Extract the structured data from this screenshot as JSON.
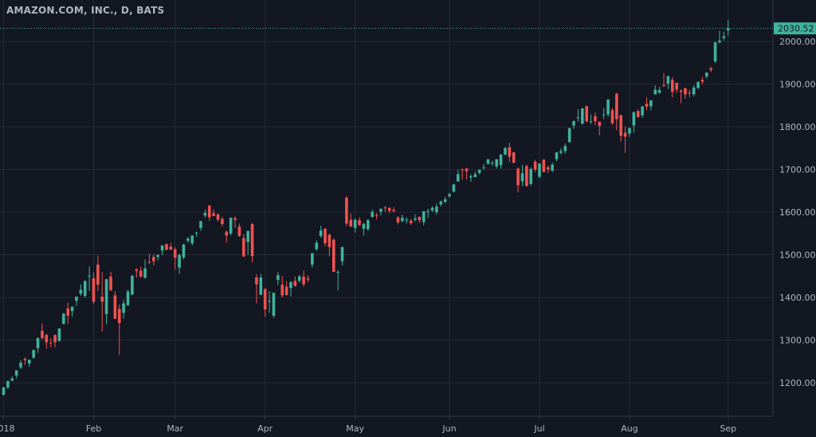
{
  "header": {
    "symbol_title": "AMAZON.COM, INC., D, BATS"
  },
  "colors": {
    "background": "#131722",
    "grid": "#262a35",
    "up": "#3fb39b",
    "down": "#ef5350",
    "axis_text": "#b2b5be",
    "last_price_bg": "#3fb39b"
  },
  "chart_data": {
    "type": "candlestick",
    "title": "AMAZON.COM, INC., D, BATS",
    "ylim": [
      1130,
      2100
    ],
    "y_ticks": [
      "2000.00",
      "1900.00",
      "1800.00",
      "1700.00",
      "1600.00",
      "1500.00",
      "1400.00",
      "1300.00",
      "1200.00"
    ],
    "y_tick_values": [
      2000,
      1900,
      1800,
      1700,
      1600,
      1500,
      1400,
      1300,
      1200
    ],
    "x_ticks": [
      {
        "label": "2018",
        "date": "2018-01-02"
      },
      {
        "label": "Feb",
        "date": "2018-02-01"
      },
      {
        "label": "Mar",
        "date": "2018-03-01"
      },
      {
        "label": "Apr",
        "date": "2018-04-02"
      },
      {
        "label": "May",
        "date": "2018-05-01"
      },
      {
        "label": "Jun",
        "date": "2018-06-01"
      },
      {
        "label": "Jul",
        "date": "2018-07-02"
      },
      {
        "label": "Aug",
        "date": "2018-08-01"
      },
      {
        "label": "Sep",
        "date": "2018-09-04"
      }
    ],
    "grid": true,
    "last_price": 2030.52,
    "last_price_label": "2030.52",
    "ohlc_columns": [
      "date",
      "open",
      "high",
      "low",
      "close"
    ],
    "ohlc": [
      [
        "2018-01-02",
        1172,
        1190,
        1170,
        1189
      ],
      [
        "2018-01-03",
        1189,
        1205,
        1185,
        1204
      ],
      [
        "2018-01-04",
        1205,
        1215,
        1204,
        1210
      ],
      [
        "2018-01-05",
        1217,
        1229,
        1210,
        1229
      ],
      [
        "2018-01-08",
        1236,
        1253,
        1232,
        1247
      ],
      [
        "2018-01-09",
        1256,
        1260,
        1241,
        1253
      ],
      [
        "2018-01-10",
        1245,
        1254,
        1237,
        1254
      ],
      [
        "2018-01-11",
        1259,
        1277,
        1256,
        1277
      ],
      [
        "2018-01-12",
        1281,
        1306,
        1270,
        1305
      ],
      [
        "2018-01-16",
        1322,
        1339,
        1301,
        1305
      ],
      [
        "2018-01-17",
        1312,
        1315,
        1280,
        1295
      ],
      [
        "2018-01-18",
        1294,
        1305,
        1283,
        1293
      ],
      [
        "2018-01-19",
        1312,
        1313,
        1283,
        1295
      ],
      [
        "2018-01-22",
        1298,
        1328,
        1297,
        1327
      ],
      [
        "2018-01-23",
        1338,
        1364,
        1337,
        1362
      ],
      [
        "2018-01-24",
        1374,
        1388,
        1338,
        1357
      ],
      [
        "2018-01-25",
        1368,
        1379,
        1355,
        1378
      ],
      [
        "2018-01-26",
        1392,
        1402,
        1380,
        1402
      ],
      [
        "2018-01-29",
        1409,
        1431,
        1404,
        1418
      ],
      [
        "2018-01-30",
        1404,
        1441,
        1399,
        1438
      ],
      [
        "2018-01-31",
        1451,
        1473,
        1415,
        1451
      ],
      [
        "2018-02-01",
        1445,
        1459,
        1385,
        1390
      ],
      [
        "2018-02-02",
        1477,
        1498,
        1414,
        1430
      ],
      [
        "2018-02-05",
        1402,
        1459,
        1320,
        1390
      ],
      [
        "2018-02-06",
        1361,
        1443,
        1337,
        1443
      ],
      [
        "2018-02-07",
        1449,
        1460,
        1415,
        1417
      ],
      [
        "2018-02-08",
        1405,
        1415,
        1350,
        1350
      ],
      [
        "2018-02-09",
        1373,
        1384,
        1265,
        1340
      ],
      [
        "2018-02-12",
        1364,
        1395,
        1350,
        1386
      ],
      [
        "2018-02-13",
        1382,
        1418,
        1380,
        1414
      ],
      [
        "2018-02-14",
        1407,
        1452,
        1405,
        1451
      ],
      [
        "2018-02-15",
        1466,
        1468,
        1446,
        1462
      ],
      [
        "2018-02-16",
        1463,
        1472,
        1446,
        1449
      ],
      [
        "2018-02-20",
        1446,
        1489,
        1444,
        1468
      ],
      [
        "2018-02-21",
        1484,
        1503,
        1478,
        1483
      ],
      [
        "2018-02-22",
        1495,
        1502,
        1475,
        1485
      ],
      [
        "2018-02-23",
        1495,
        1500,
        1487,
        1500
      ],
      [
        "2018-02-26",
        1510,
        1522,
        1499,
        1522
      ],
      [
        "2018-02-27",
        1525,
        1527,
        1510,
        1512
      ],
      [
        "2018-02-28",
        1519,
        1528,
        1512,
        1512
      ],
      [
        "2018-03-01",
        1513,
        1518,
        1465,
        1493
      ],
      [
        "2018-03-02",
        1470,
        1502,
        1455,
        1500
      ],
      [
        "2018-03-05",
        1494,
        1526,
        1489,
        1524
      ],
      [
        "2018-03-06",
        1533,
        1542,
        1528,
        1538
      ],
      [
        "2018-03-07",
        1527,
        1546,
        1522,
        1545
      ],
      [
        "2018-03-08",
        1550,
        1554,
        1542,
        1552
      ],
      [
        "2018-03-09",
        1563,
        1579,
        1556,
        1579
      ],
      [
        "2018-03-12",
        1592,
        1606,
        1586,
        1598
      ],
      [
        "2018-03-13",
        1615,
        1617,
        1579,
        1588
      ],
      [
        "2018-03-14",
        1597,
        1606,
        1590,
        1591
      ],
      [
        "2018-03-15",
        1595,
        1596,
        1578,
        1582
      ],
      [
        "2018-03-16",
        1584,
        1589,
        1566,
        1572
      ],
      [
        "2018-03-19",
        1554,
        1557,
        1528,
        1545
      ],
      [
        "2018-03-20",
        1550,
        1587,
        1545,
        1587
      ],
      [
        "2018-03-21",
        1586,
        1590,
        1563,
        1582
      ],
      [
        "2018-03-22",
        1566,
        1573,
        1542,
        1544
      ],
      [
        "2018-03-23",
        1539,
        1549,
        1495,
        1496
      ],
      [
        "2018-03-26",
        1530,
        1556,
        1500,
        1556
      ],
      [
        "2018-03-27",
        1572,
        1575,
        1482,
        1497
      ],
      [
        "2018-03-28",
        1447,
        1455,
        1386,
        1431
      ],
      [
        "2018-03-29",
        1406,
        1455,
        1406,
        1447
      ],
      [
        "2018-04-02",
        1420,
        1421,
        1355,
        1372
      ],
      [
        "2018-04-03",
        1390,
        1415,
        1364,
        1392
      ],
      [
        "2018-04-04",
        1357,
        1410,
        1352,
        1411
      ],
      [
        "2018-04-05",
        1441,
        1460,
        1429,
        1452
      ],
      [
        "2018-04-06",
        1430,
        1450,
        1400,
        1405
      ],
      [
        "2018-04-09",
        1425,
        1438,
        1404,
        1406
      ],
      [
        "2018-04-10",
        1422,
        1438,
        1402,
        1436
      ],
      [
        "2018-04-11",
        1439,
        1449,
        1425,
        1427
      ],
      [
        "2018-04-12",
        1439,
        1453,
        1435,
        1449
      ],
      [
        "2018-04-13",
        1449,
        1463,
        1425,
        1431
      ],
      [
        "2018-04-16",
        1445,
        1452,
        1435,
        1442
      ],
      [
        "2018-04-17",
        1477,
        1504,
        1470,
        1504
      ],
      [
        "2018-04-18",
        1513,
        1534,
        1509,
        1528
      ],
      [
        "2018-04-19",
        1544,
        1568,
        1540,
        1557
      ],
      [
        "2018-04-20",
        1561,
        1563,
        1520,
        1527
      ],
      [
        "2018-04-23",
        1547,
        1549,
        1496,
        1518
      ],
      [
        "2018-04-24",
        1535,
        1539,
        1462,
        1460
      ],
      [
        "2018-04-25",
        1458,
        1464,
        1417,
        1460
      ],
      [
        "2018-04-26",
        1485,
        1519,
        1475,
        1518
      ],
      [
        "2018-04-27",
        1634,
        1638,
        1567,
        1573
      ],
      [
        "2018-04-30",
        1582,
        1597,
        1566,
        1566
      ],
      [
        "2018-05-01",
        1563,
        1585,
        1552,
        1582
      ],
      [
        "2018-05-02",
        1581,
        1588,
        1567,
        1570
      ],
      [
        "2018-05-03",
        1561,
        1576,
        1545,
        1572
      ],
      [
        "2018-05-04",
        1560,
        1584,
        1556,
        1581
      ],
      [
        "2018-05-07",
        1589,
        1606,
        1587,
        1600
      ],
      [
        "2018-05-08",
        1593,
        1598,
        1583,
        1592
      ],
      [
        "2018-05-09",
        1601,
        1608,
        1592,
        1608
      ],
      [
        "2018-05-10",
        1611,
        1615,
        1600,
        1609
      ],
      [
        "2018-05-11",
        1610,
        1611,
        1598,
        1603
      ],
      [
        "2018-05-14",
        1605,
        1612,
        1600,
        1602
      ],
      [
        "2018-05-15",
        1588,
        1590,
        1571,
        1576
      ],
      [
        "2018-05-16",
        1579,
        1594,
        1576,
        1587
      ],
      [
        "2018-05-17",
        1581,
        1588,
        1573,
        1582
      ],
      [
        "2018-05-18",
        1580,
        1584,
        1570,
        1574
      ],
      [
        "2018-05-21",
        1582,
        1595,
        1578,
        1585
      ],
      [
        "2018-05-22",
        1589,
        1590,
        1575,
        1581
      ],
      [
        "2018-05-23",
        1577,
        1602,
        1569,
        1602
      ],
      [
        "2018-05-24",
        1601,
        1608,
        1586,
        1603
      ],
      [
        "2018-05-25",
        1604,
        1614,
        1601,
        1610
      ],
      [
        "2018-05-29",
        1600,
        1620,
        1594,
        1613
      ],
      [
        "2018-05-30",
        1618,
        1627,
        1614,
        1625
      ],
      [
        "2018-05-31",
        1624,
        1636,
        1621,
        1630
      ],
      [
        "2018-06-01",
        1637,
        1646,
        1634,
        1642
      ],
      [
        "2018-06-04",
        1648,
        1666,
        1646,
        1665
      ],
      [
        "2018-06-05",
        1672,
        1699,
        1671,
        1689
      ],
      [
        "2018-06-06",
        1700,
        1702,
        1676,
        1699
      ],
      [
        "2018-06-07",
        1702,
        1704,
        1676,
        1696
      ],
      [
        "2018-06-08",
        1681,
        1689,
        1671,
        1684
      ],
      [
        "2018-06-11",
        1682,
        1695,
        1682,
        1689
      ],
      [
        "2018-06-12",
        1692,
        1700,
        1688,
        1699
      ],
      [
        "2018-06-13",
        1703,
        1713,
        1700,
        1705
      ],
      [
        "2018-06-14",
        1713,
        1724,
        1712,
        1724
      ],
      [
        "2018-06-15",
        1714,
        1720,
        1708,
        1716
      ],
      [
        "2018-06-18",
        1707,
        1724,
        1702,
        1724
      ],
      [
        "2018-06-19",
        1710,
        1736,
        1702,
        1735
      ],
      [
        "2018-06-20",
        1735,
        1753,
        1733,
        1750
      ],
      [
        "2018-06-21",
        1752,
        1763,
        1717,
        1730
      ],
      [
        "2018-06-22",
        1740,
        1741,
        1714,
        1716
      ],
      [
        "2018-06-25",
        1702,
        1705,
        1646,
        1663
      ],
      [
        "2018-06-26",
        1672,
        1711,
        1661,
        1691
      ],
      [
        "2018-06-27",
        1708,
        1711,
        1660,
        1661
      ],
      [
        "2018-06-28",
        1666,
        1705,
        1662,
        1701
      ],
      [
        "2018-06-29",
        1718,
        1723,
        1694,
        1700
      ],
      [
        "2018-07-02",
        1683,
        1714,
        1679,
        1714
      ],
      [
        "2018-07-03",
        1723,
        1724,
        1693,
        1694
      ],
      [
        "2018-07-05",
        1705,
        1710,
        1691,
        1700
      ],
      [
        "2018-07-06",
        1697,
        1716,
        1694,
        1711
      ],
      [
        "2018-07-09",
        1724,
        1740,
        1719,
        1740
      ],
      [
        "2018-07-10",
        1739,
        1750,
        1735,
        1743
      ],
      [
        "2018-07-11",
        1743,
        1761,
        1737,
        1755
      ],
      [
        "2018-07-12",
        1764,
        1797,
        1763,
        1797
      ],
      [
        "2018-07-13",
        1803,
        1815,
        1795,
        1813
      ],
      [
        "2018-07-16",
        1820,
        1841,
        1812,
        1822
      ],
      [
        "2018-07-17",
        1807,
        1844,
        1806,
        1843
      ],
      [
        "2018-07-18",
        1848,
        1850,
        1810,
        1813
      ],
      [
        "2018-07-19",
        1812,
        1829,
        1806,
        1813
      ],
      [
        "2018-07-20",
        1825,
        1834,
        1804,
        1813
      ],
      [
        "2018-07-23",
        1812,
        1812,
        1780,
        1802
      ],
      [
        "2018-07-24",
        1829,
        1844,
        1818,
        1829
      ],
      [
        "2018-07-25",
        1829,
        1864,
        1823,
        1864
      ],
      [
        "2018-07-26",
        1839,
        1845,
        1805,
        1808
      ],
      [
        "2018-07-27",
        1877,
        1880,
        1792,
        1818
      ],
      [
        "2018-07-30",
        1827,
        1829,
        1766,
        1779
      ],
      [
        "2018-07-31",
        1786,
        1801,
        1739,
        1777
      ],
      [
        "2018-08-01",
        1784,
        1798,
        1776,
        1797
      ],
      [
        "2018-08-02",
        1803,
        1836,
        1786,
        1834
      ],
      [
        "2018-08-03",
        1837,
        1841,
        1821,
        1823
      ],
      [
        "2018-08-06",
        1827,
        1848,
        1821,
        1848
      ],
      [
        "2018-08-07",
        1854,
        1869,
        1839,
        1847
      ],
      [
        "2018-08-08",
        1848,
        1863,
        1838,
        1862
      ],
      [
        "2018-08-09",
        1876,
        1897,
        1876,
        1887
      ],
      [
        "2018-08-10",
        1880,
        1894,
        1877,
        1886
      ],
      [
        "2018-08-13",
        1898,
        1926,
        1893,
        1896
      ],
      [
        "2018-08-14",
        1901,
        1919,
        1888,
        1919
      ],
      [
        "2018-08-15",
        1910,
        1916,
        1869,
        1882
      ],
      [
        "2018-08-16",
        1903,
        1904,
        1879,
        1887
      ],
      [
        "2018-08-17",
        1885,
        1888,
        1855,
        1882
      ],
      [
        "2018-08-20",
        1891,
        1891,
        1866,
        1876
      ],
      [
        "2018-08-21",
        1880,
        1887,
        1869,
        1878
      ],
      [
        "2018-08-22",
        1876,
        1897,
        1871,
        1892
      ],
      [
        "2018-08-23",
        1891,
        1907,
        1888,
        1905
      ],
      [
        "2018-08-24",
        1910,
        1917,
        1900,
        1906
      ],
      [
        "2018-08-27",
        1918,
        1927,
        1913,
        1927
      ],
      [
        "2018-08-28",
        1937,
        1941,
        1928,
        1933
      ],
      [
        "2018-08-29",
        1953,
        1999,
        1950,
        1998
      ],
      [
        "2018-08-30",
        1998,
        2025,
        1995,
        2002
      ],
      [
        "2018-08-31",
        2008,
        2023,
        2002,
        2012
      ],
      [
        "2018-09-04",
        2026,
        2050,
        2013,
        2030.52
      ]
    ]
  }
}
